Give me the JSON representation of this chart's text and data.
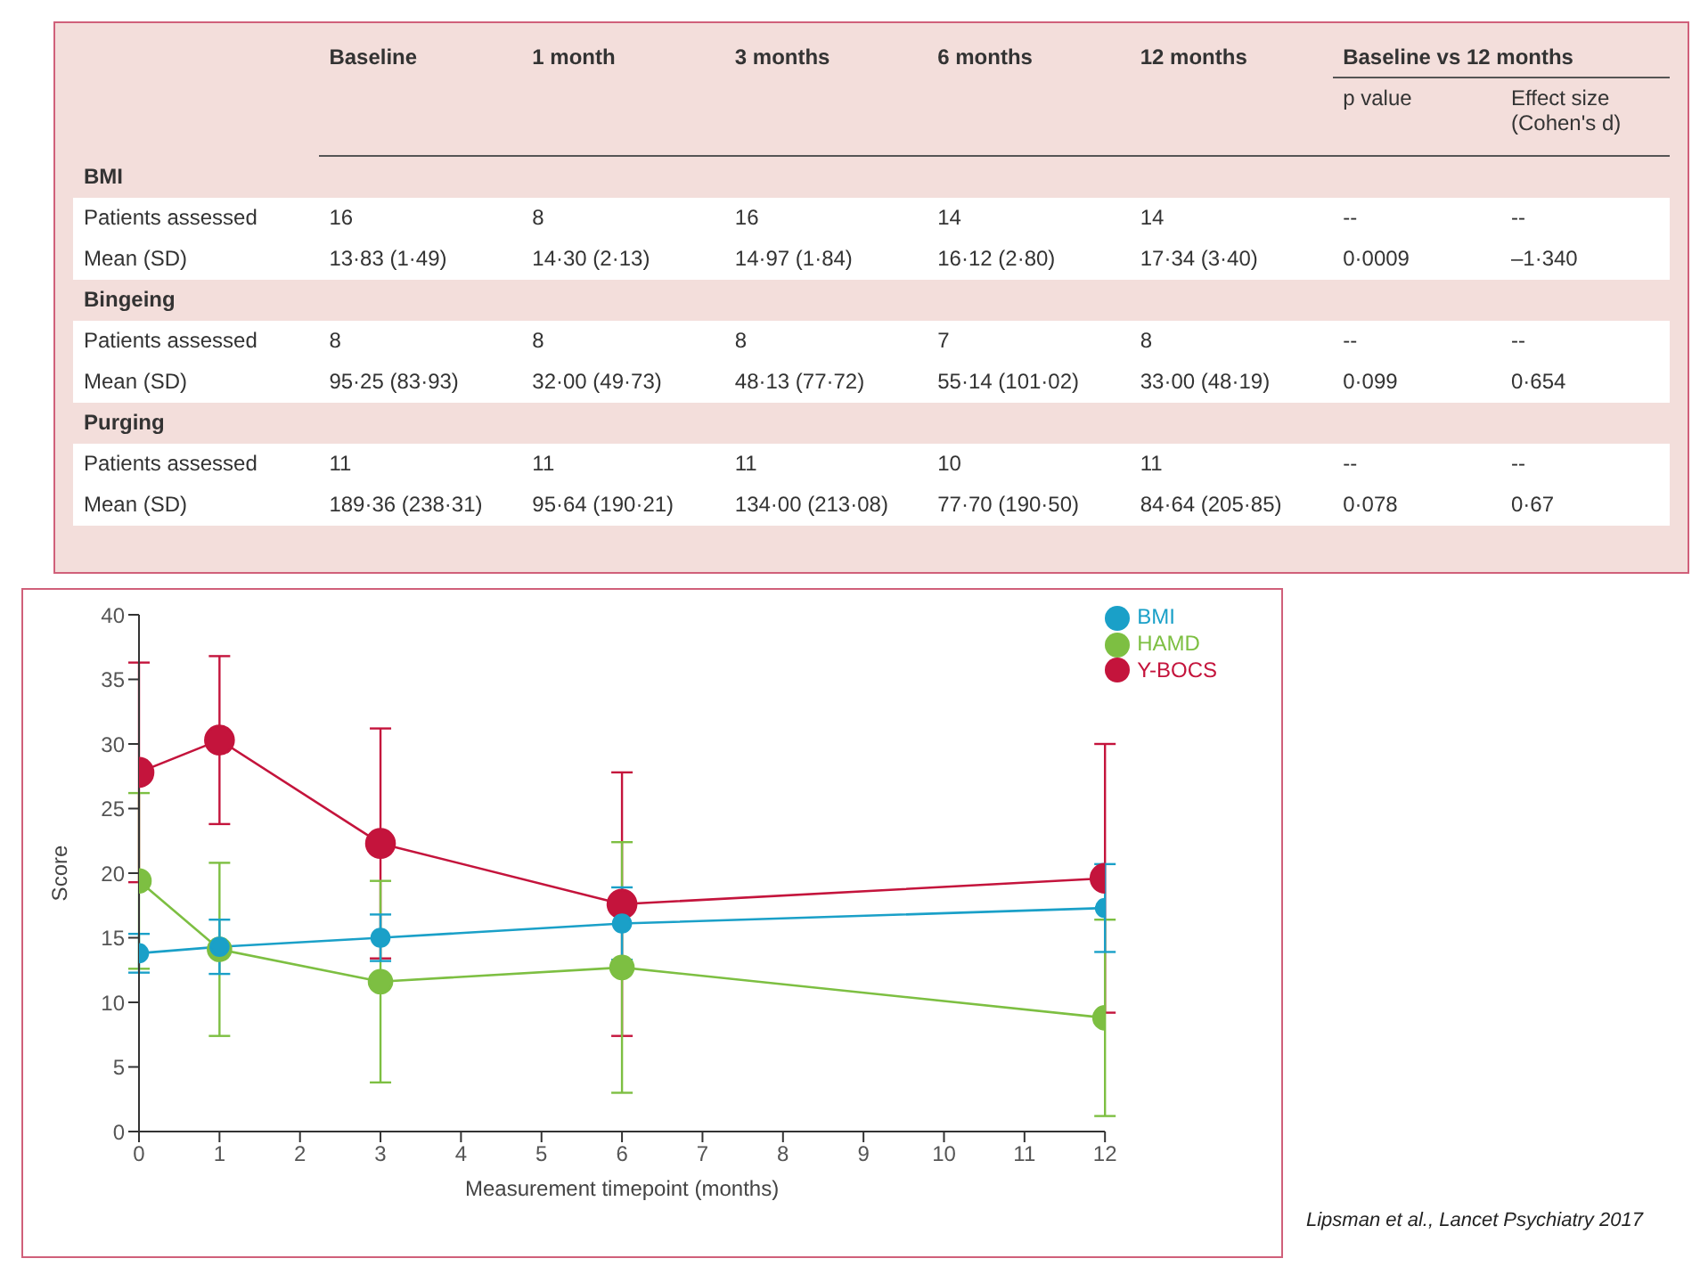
{
  "chart_data": [
    {
      "type": "other",
      "categories": [
        "Baseline",
        "1 month",
        "3 months",
        "6 months",
        "12 months",
        "p value",
        "Effect size (Cohen's d)"
      ],
      "annotations": [
        "Baseline vs 12 months"
      ],
      "y_categories": [
        "BMI",
        "Patients assessed",
        "Mean (SD)",
        "Bingeing",
        "Patients assessed",
        "Mean (SD)",
        "Purging",
        "Patients assessed",
        "Mean (SD)"
      ],
      "cell_labels": [
        [
          null,
          null,
          null,
          null,
          null,
          null,
          null
        ],
        [
          "16",
          "8",
          "16",
          "14",
          "14",
          "--",
          "--"
        ],
        [
          "13·83 (1·49)",
          "14·30 (2·13)",
          "14·97 (1·84)",
          "16·12 (2·80)",
          "17·34 (3·40)",
          "0·0009",
          "–1·340"
        ],
        [
          null,
          null,
          null,
          null,
          null,
          null,
          null
        ],
        [
          "8",
          "8",
          "8",
          "7",
          "8",
          "--",
          "--"
        ],
        [
          "95·25 (83·93)",
          "32·00 (49·73)",
          "48·13 (77·72)",
          "55·14 (101·02)",
          "33·00 (48·19)",
          "0·099",
          "0·654"
        ],
        [
          null,
          null,
          null,
          null,
          null,
          null,
          null
        ],
        [
          "11",
          "11",
          "11",
          "10",
          "11",
          "--",
          "--"
        ],
        [
          "189·36 (238·31)",
          "95·64 (190·21)",
          "134·00 (213·08)",
          "77·70 (190·50)",
          "84·64 (205·85)",
          "0·078",
          "0·67"
        ]
      ]
    },
    {
      "type": "line",
      "x": [
        0,
        1,
        3,
        6,
        12
      ],
      "xlabel": "Measurement timepoint (months)",
      "ylabel": "Score",
      "xlim": [
        0,
        12
      ],
      "xticks": [
        0,
        1,
        2,
        3,
        4,
        5,
        6,
        7,
        8,
        9,
        10,
        11,
        12
      ],
      "ylim": [
        0,
        40
      ],
      "yticks": [
        0,
        5,
        10,
        15,
        20,
        25,
        30,
        35,
        40
      ],
      "grid": false,
      "legend": "top right",
      "marker": "circle",
      "line_style": "solid",
      "annotations": [
        "Lipsman et al., Lancet Psychiatry 2017"
      ],
      "series": [
        {
          "name": "Y-BOCS",
          "color": "#c4143c",
          "values": [
            27.8,
            30.3,
            22.3,
            17.6,
            19.6
          ],
          "errors": [
            8.5,
            6.5,
            8.9,
            10.2,
            10.4
          ]
        },
        {
          "name": "HAMD",
          "color": "#7dbf42",
          "values": [
            19.4,
            14.1,
            11.6,
            12.7,
            8.8
          ],
          "errors": [
            6.8,
            6.7,
            7.8,
            9.7,
            7.6
          ]
        },
        {
          "name": "BMI",
          "color": "#1aa0c8",
          "values": [
            13.8,
            14.3,
            15.0,
            16.1,
            17.3
          ],
          "errors": [
            1.5,
            2.1,
            1.8,
            2.8,
            3.4
          ]
        }
      ]
    }
  ]
}
